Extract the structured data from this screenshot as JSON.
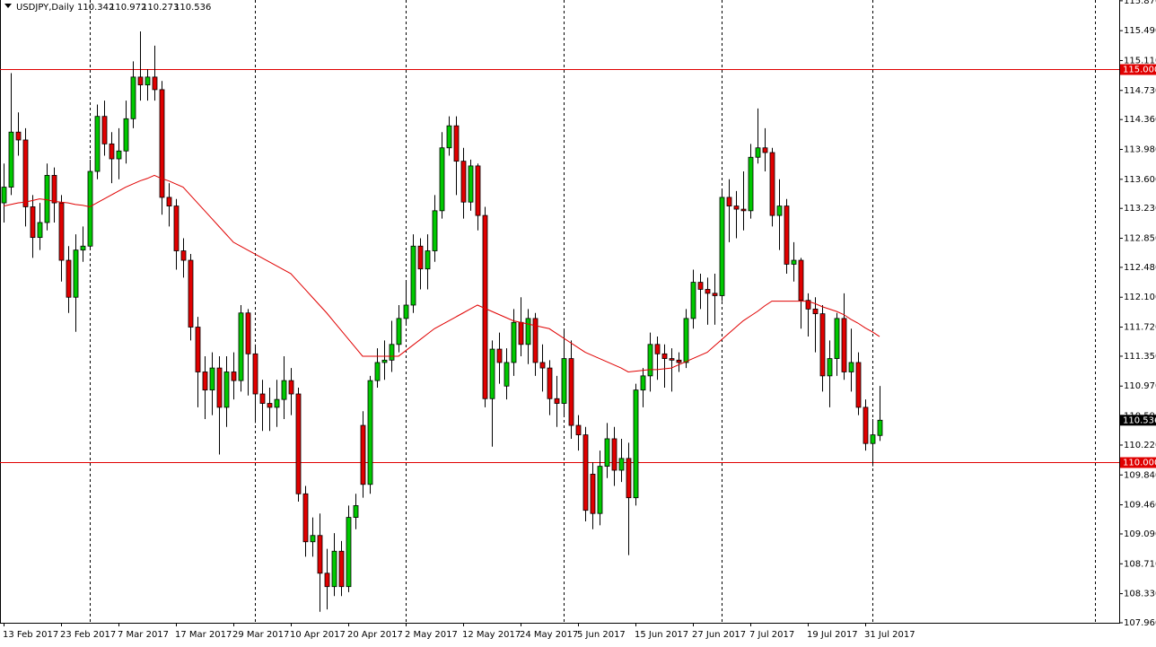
{
  "chart_data": {
    "type": "candlestick",
    "title": "USDJPY,Daily",
    "categories": [
      "13 Feb 2017",
      null,
      null,
      null,
      null,
      null,
      null,
      null,
      "23 Feb 2017",
      null,
      null,
      null,
      null,
      null,
      null,
      null,
      "7 Mar 2017",
      null,
      null,
      null,
      null,
      null,
      null,
      null,
      "17 Mar 2017",
      null,
      null,
      null,
      null,
      null,
      null,
      null,
      "29 Mar 2017",
      null,
      null,
      null,
      null,
      null,
      null,
      null,
      "10 Apr 2017",
      null,
      null,
      null,
      null,
      null,
      null,
      null,
      "20 Apr 2017",
      null,
      null,
      null,
      null,
      null,
      null,
      null,
      "2 May 2017",
      null,
      null,
      null,
      null,
      null,
      null,
      null,
      "12 May 2017",
      null,
      null,
      null,
      null,
      null,
      null,
      null,
      "24 May 2017",
      null,
      null,
      null,
      null,
      null,
      null,
      null,
      "5 Jun 2017",
      null,
      null,
      null,
      null,
      null,
      null,
      null,
      "15 Jun 2017",
      null,
      null,
      null,
      null,
      null,
      null,
      null,
      "27 Jun 2017",
      null,
      null,
      null,
      null,
      null,
      null,
      null,
      "7 Jul 2017",
      null,
      null,
      null,
      null,
      null,
      null,
      null,
      "19 Jul 2017",
      null,
      null,
      null,
      null,
      null,
      null,
      null,
      "31 Jul 2017",
      null,
      null
    ],
    "open": [
      113.3,
      113.5,
      114.2,
      114.1,
      113.25,
      112.86,
      113.05,
      113.65,
      113.3,
      112.57,
      112.1,
      112.7,
      112.75,
      113.7,
      114.4,
      114.05,
      113.86,
      113.96,
      114.37,
      114.9,
      114.8,
      114.9,
      114.74,
      113.37,
      113.26,
      112.69,
      112.57,
      111.72,
      111.15,
      110.92,
      111.2,
      110.7,
      111.15,
      111.04,
      111.9,
      111.38,
      110.87,
      110.75,
      110.7,
      110.8,
      111.04,
      110.87,
      109.6,
      108.99,
      109.07,
      108.59,
      108.42,
      108.87,
      108.42,
      109.3,
      110.47,
      109.72,
      111.04,
      111.27,
      111.3,
      111.5,
      111.83,
      112.0,
      112.75,
      112.46,
      112.69,
      113.2,
      114.0,
      114.28,
      113.83,
      113.31,
      113.77,
      113.14,
      110.81,
      111.44,
      110.97,
      111.27,
      111.78,
      111.5,
      111.83,
      111.27,
      111.2,
      110.81,
      110.75,
      111.32,
      110.47,
      110.35,
      109.85,
      109.35,
      109.95,
      110.3,
      109.9,
      110.05,
      109.55,
      110.92,
      111.1,
      111.5,
      111.38,
      111.32,
      111.3,
      111.27,
      111.83,
      112.29,
      112.2,
      112.15,
      112.12,
      113.37,
      113.26,
      113.22,
      113.2,
      113.88,
      114.0,
      113.94,
      113.14,
      113.26,
      112.52,
      112.57,
      112.06,
      111.95,
      111.89,
      111.1,
      111.32,
      111.83,
      111.15,
      111.27,
      110.7,
      110.24,
      110.342
    ],
    "high": [
      113.8,
      114.95,
      114.45,
      114.25,
      113.4,
      113.3,
      113.8,
      113.75,
      113.4,
      112.75,
      112.9,
      113.0,
      113.85,
      114.55,
      114.6,
      114.2,
      114.25,
      114.6,
      115.1,
      115.48,
      115.0,
      115.3,
      114.85,
      113.55,
      113.35,
      112.85,
      112.65,
      111.85,
      111.35,
      111.4,
      111.35,
      111.35,
      111.4,
      112.0,
      111.95,
      111.5,
      111.05,
      110.95,
      111.05,
      111.35,
      111.2,
      110.95,
      109.7,
      109.3,
      109.35,
      108.9,
      109.1,
      109.0,
      109.45,
      109.6,
      110.65,
      111.1,
      111.45,
      111.55,
      111.8,
      112.0,
      112.3,
      112.9,
      112.85,
      112.9,
      113.4,
      114.2,
      114.4,
      114.4,
      114.0,
      113.85,
      113.8,
      113.25,
      111.55,
      111.65,
      111.45,
      111.95,
      112.1,
      111.95,
      111.9,
      111.5,
      111.3,
      111.1,
      111.7,
      111.55,
      110.6,
      110.45,
      110.0,
      110.15,
      110.5,
      110.45,
      110.3,
      110.25,
      111.0,
      111.2,
      111.65,
      111.6,
      111.5,
      111.45,
      111.4,
      111.95,
      112.45,
      112.4,
      112.35,
      112.4,
      113.45,
      113.6,
      113.45,
      113.7,
      114.05,
      114.5,
      114.25,
      114.0,
      113.6,
      113.35,
      112.8,
      112.6,
      112.15,
      112.1,
      112.0,
      111.55,
      111.9,
      112.15,
      111.7,
      111.4,
      110.8,
      110.55,
      110.972
    ],
    "low": [
      113.05,
      113.4,
      113.9,
      113.0,
      112.6,
      112.7,
      112.95,
      113.05,
      112.3,
      111.9,
      111.66,
      112.55,
      112.7,
      113.6,
      113.9,
      113.55,
      113.6,
      113.8,
      114.25,
      114.6,
      114.6,
      114.6,
      113.15,
      113.0,
      112.45,
      112.35,
      111.55,
      110.7,
      110.55,
      110.6,
      110.1,
      110.45,
      110.8,
      110.9,
      110.85,
      110.5,
      110.4,
      110.4,
      110.45,
      110.55,
      110.6,
      109.5,
      108.8,
      108.8,
      108.1,
      108.13,
      108.3,
      108.3,
      108.35,
      109.15,
      109.55,
      109.6,
      110.95,
      111.05,
      111.15,
      111.4,
      111.75,
      111.9,
      112.2,
      112.2,
      112.55,
      113.1,
      113.9,
      113.4,
      113.1,
      113.2,
      112.95,
      110.7,
      110.2,
      111.0,
      110.8,
      111.1,
      111.35,
      111.25,
      111.1,
      110.9,
      110.6,
      110.45,
      110.6,
      110.3,
      110.15,
      109.25,
      109.15,
      109.2,
      109.8,
      109.7,
      109.75,
      108.82,
      109.45,
      110.7,
      110.9,
      111.05,
      110.95,
      110.9,
      111.15,
      111.2,
      111.7,
      111.95,
      111.75,
      111.75,
      112.05,
      112.8,
      112.85,
      112.95,
      113.1,
      113.8,
      113.7,
      113.0,
      112.7,
      112.4,
      112.3,
      111.7,
      111.6,
      111.4,
      110.9,
      110.7,
      111.1,
      111.05,
      110.9,
      110.6,
      110.15,
      109.95,
      110.273
    ],
    "close": [
      113.5,
      114.2,
      114.1,
      113.25,
      112.86,
      113.05,
      113.65,
      113.3,
      112.57,
      112.1,
      112.7,
      112.75,
      113.7,
      114.4,
      114.05,
      113.86,
      113.96,
      114.37,
      114.9,
      114.8,
      114.9,
      114.74,
      113.37,
      113.26,
      112.69,
      112.57,
      111.72,
      111.15,
      110.92,
      111.2,
      110.7,
      111.15,
      111.04,
      111.9,
      111.38,
      110.87,
      110.75,
      110.7,
      110.8,
      111.04,
      110.87,
      109.6,
      108.99,
      109.07,
      108.59,
      108.42,
      108.87,
      108.42,
      109.3,
      109.45,
      109.72,
      111.04,
      111.27,
      111.3,
      111.5,
      111.83,
      112.0,
      112.75,
      112.46,
      112.69,
      113.2,
      114.0,
      114.28,
      113.83,
      113.31,
      113.77,
      113.14,
      110.81,
      111.44,
      111.27,
      111.27,
      111.78,
      111.5,
      111.83,
      111.27,
      111.2,
      110.81,
      110.75,
      111.32,
      110.47,
      110.35,
      109.39,
      109.35,
      109.95,
      110.3,
      109.9,
      110.05,
      109.55,
      110.92,
      111.1,
      111.5,
      111.38,
      111.32,
      111.3,
      111.27,
      111.83,
      112.29,
      112.2,
      112.15,
      112.12,
      113.37,
      113.26,
      113.22,
      113.2,
      113.88,
      114.0,
      113.94,
      113.14,
      113.26,
      112.52,
      112.57,
      112.06,
      111.95,
      111.89,
      111.1,
      111.32,
      111.83,
      111.15,
      111.27,
      110.7,
      110.24,
      110.35,
      110.536
    ],
    "up_color": "#00c800",
    "down_color": "#e00000",
    "moving_average": {
      "color": "#e00000",
      "values": [
        113.26,
        113.28,
        113.3,
        113.31,
        113.33,
        113.35,
        113.34,
        113.32,
        113.31,
        113.3,
        113.28,
        113.27,
        113.25,
        113.3,
        113.35,
        113.4,
        113.45,
        113.5,
        113.54,
        113.58,
        113.61,
        113.65,
        113.61,
        113.58,
        113.54,
        113.5,
        113.4,
        113.3,
        113.2,
        113.1,
        113.0,
        112.9,
        112.8,
        112.75,
        112.7,
        112.65,
        112.6,
        112.55,
        112.5,
        112.45,
        112.4,
        112.3,
        112.2,
        112.1,
        112.0,
        111.9,
        111.79,
        111.68,
        111.57,
        111.46,
        111.35,
        111.35,
        111.35,
        111.35,
        111.35,
        111.35,
        111.42,
        111.49,
        111.56,
        111.63,
        111.7,
        111.75,
        111.8,
        111.85,
        111.9,
        111.95,
        112.0,
        111.96,
        111.92,
        111.88,
        111.84,
        111.8,
        111.78,
        111.76,
        111.74,
        111.72,
        111.7,
        111.64,
        111.58,
        111.52,
        111.46,
        111.4,
        111.36,
        111.32,
        111.28,
        111.24,
        111.2,
        111.15,
        111.16,
        111.17,
        111.18,
        111.18,
        111.19,
        111.2,
        111.24,
        111.28,
        111.32,
        111.36,
        111.4,
        111.48,
        111.56,
        111.64,
        111.72,
        111.8,
        111.86,
        111.92,
        111.99,
        112.05,
        112.05,
        112.05,
        112.05,
        112.05,
        112.05,
        112.02,
        111.98,
        111.95,
        111.92,
        111.88,
        111.82,
        111.77,
        111.71,
        111.66,
        111.6
      ]
    },
    "hlines": [
      {
        "value": 115,
        "label": "115.000",
        "color": "#e00000"
      },
      {
        "value": 110,
        "label": "110.000",
        "color": "#e00000"
      }
    ],
    "ylim": [
      107.96,
      115.88
    ],
    "yticks": [
      {
        "value": 115.87,
        "label": "115.870"
      },
      {
        "value": 115.49,
        "label": "115.490"
      },
      {
        "value": 115.11,
        "label": "115.110"
      },
      {
        "value": 114.73,
        "label": "114.730"
      },
      {
        "value": 114.36,
        "label": "114.360"
      },
      {
        "value": 113.98,
        "label": "113.980"
      },
      {
        "value": 113.6,
        "label": "113.600"
      },
      {
        "value": 113.23,
        "label": "113.230"
      },
      {
        "value": 112.85,
        "label": "112.850"
      },
      {
        "value": 112.48,
        "label": "112.480"
      },
      {
        "value": 112.1,
        "label": "112.100"
      },
      {
        "value": 111.72,
        "label": "111.720"
      },
      {
        "value": 111.35,
        "label": "111.350"
      },
      {
        "value": 110.97,
        "label": "110.970"
      },
      {
        "value": 110.59,
        "label": "110.590"
      },
      {
        "value": 110.22,
        "label": "110.220"
      },
      {
        "value": 109.84,
        "label": "109.840"
      },
      {
        "value": 109.46,
        "label": "109.460"
      },
      {
        "value": 109.09,
        "label": "109.090"
      },
      {
        "value": 108.71,
        "label": "108.710"
      },
      {
        "value": 108.33,
        "label": "108.330"
      },
      {
        "value": 107.96,
        "label": "107.960"
      }
    ]
  }
}
